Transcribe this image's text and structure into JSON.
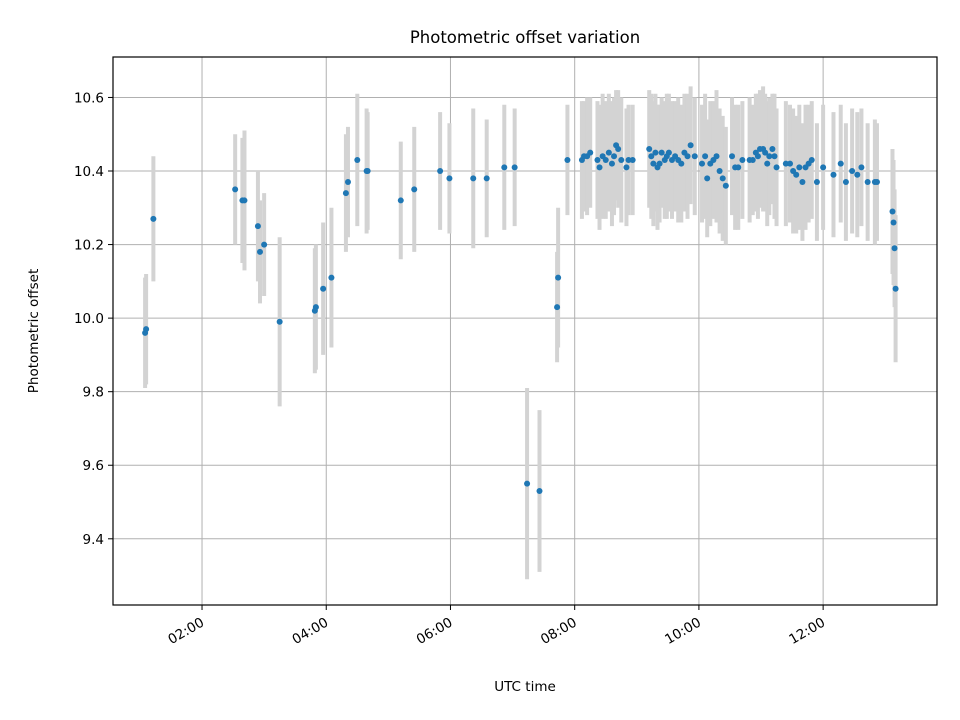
{
  "chart_data": {
    "type": "scatter",
    "title": "Photometric offset variation",
    "xlabel": "UTC time",
    "ylabel": "Photometric offset",
    "x_format": "HH:MM",
    "xlim": [
      "00:34",
      "13:50"
    ],
    "ylim": [
      9.22,
      10.71
    ],
    "xticks": [
      "02:00",
      "04:00",
      "06:00",
      "08:00",
      "10:00",
      "12:00"
    ],
    "yticks": [
      9.4,
      9.6,
      9.8,
      10.0,
      10.2,
      10.4,
      10.6
    ],
    "grid": true,
    "colors": {
      "points": "#1f77b4",
      "errorbars": "#d3d3d3",
      "grid": "#b0b0b0"
    },
    "points": [
      {
        "t": "01:05",
        "y": 9.96,
        "err": 0.15
      },
      {
        "t": "01:06",
        "y": 9.97,
        "err": 0.15
      },
      {
        "t": "01:13",
        "y": 10.27,
        "err": 0.17
      },
      {
        "t": "02:32",
        "y": 10.35,
        "err": 0.15
      },
      {
        "t": "02:39",
        "y": 10.32,
        "err": 0.17
      },
      {
        "t": "02:41",
        "y": 10.32,
        "err": 0.19
      },
      {
        "t": "02:54",
        "y": 10.25,
        "err": 0.15
      },
      {
        "t": "02:56",
        "y": 10.18,
        "err": 0.14
      },
      {
        "t": "03:00",
        "y": 10.2,
        "err": 0.14
      },
      {
        "t": "03:15",
        "y": 9.99,
        "err": 0.23
      },
      {
        "t": "03:49",
        "y": 10.02,
        "err": 0.17
      },
      {
        "t": "03:50",
        "y": 10.03,
        "err": 0.17
      },
      {
        "t": "03:57",
        "y": 10.08,
        "err": 0.18
      },
      {
        "t": "04:05",
        "y": 10.11,
        "err": 0.19
      },
      {
        "t": "04:19",
        "y": 10.34,
        "err": 0.16
      },
      {
        "t": "04:21",
        "y": 10.37,
        "err": 0.15
      },
      {
        "t": "04:30",
        "y": 10.43,
        "err": 0.18
      },
      {
        "t": "04:39",
        "y": 10.4,
        "err": 0.17
      },
      {
        "t": "04:40",
        "y": 10.4,
        "err": 0.16
      },
      {
        "t": "05:12",
        "y": 10.32,
        "err": 0.16
      },
      {
        "t": "05:25",
        "y": 10.35,
        "err": 0.17
      },
      {
        "t": "05:50",
        "y": 10.4,
        "err": 0.16
      },
      {
        "t": "05:59",
        "y": 10.38,
        "err": 0.15
      },
      {
        "t": "06:22",
        "y": 10.38,
        "err": 0.19
      },
      {
        "t": "06:35",
        "y": 10.38,
        "err": 0.16
      },
      {
        "t": "06:52",
        "y": 10.41,
        "err": 0.17
      },
      {
        "t": "07:02",
        "y": 10.41,
        "err": 0.16
      },
      {
        "t": "07:14",
        "y": 9.55,
        "err": 0.26
      },
      {
        "t": "07:26",
        "y": 9.53,
        "err": 0.22
      },
      {
        "t": "07:43",
        "y": 10.03,
        "err": 0.15
      },
      {
        "t": "07:44",
        "y": 10.11,
        "err": 0.19
      },
      {
        "t": "07:53",
        "y": 10.43,
        "err": 0.15
      },
      {
        "t": "08:07",
        "y": 10.43,
        "err": 0.16
      },
      {
        "t": "08:09",
        "y": 10.44,
        "err": 0.15
      },
      {
        "t": "08:12",
        "y": 10.44,
        "err": 0.16
      },
      {
        "t": "08:15",
        "y": 10.45,
        "err": 0.15
      },
      {
        "t": "08:22",
        "y": 10.43,
        "err": 0.16
      },
      {
        "t": "08:24",
        "y": 10.41,
        "err": 0.17
      },
      {
        "t": "08:27",
        "y": 10.44,
        "err": 0.17
      },
      {
        "t": "08:30",
        "y": 10.43,
        "err": 0.16
      },
      {
        "t": "08:33",
        "y": 10.45,
        "err": 0.16
      },
      {
        "t": "08:36",
        "y": 10.42,
        "err": 0.17
      },
      {
        "t": "08:38",
        "y": 10.44,
        "err": 0.16
      },
      {
        "t": "08:40",
        "y": 10.47,
        "err": 0.15
      },
      {
        "t": "08:42",
        "y": 10.46,
        "err": 0.16
      },
      {
        "t": "08:45",
        "y": 10.43,
        "err": 0.17
      },
      {
        "t": "08:50",
        "y": 10.41,
        "err": 0.16
      },
      {
        "t": "08:52",
        "y": 10.43,
        "err": 0.15
      },
      {
        "t": "08:56",
        "y": 10.43,
        "err": 0.15
      },
      {
        "t": "09:12",
        "y": 10.46,
        "err": 0.16
      },
      {
        "t": "09:14",
        "y": 10.44,
        "err": 0.17
      },
      {
        "t": "09:16",
        "y": 10.42,
        "err": 0.17
      },
      {
        "t": "09:18",
        "y": 10.45,
        "err": 0.16
      },
      {
        "t": "09:20",
        "y": 10.41,
        "err": 0.17
      },
      {
        "t": "09:22",
        "y": 10.42,
        "err": 0.16
      },
      {
        "t": "09:24",
        "y": 10.45,
        "err": 0.15
      },
      {
        "t": "09:27",
        "y": 10.43,
        "err": 0.16
      },
      {
        "t": "09:29",
        "y": 10.44,
        "err": 0.17
      },
      {
        "t": "09:31",
        "y": 10.45,
        "err": 0.16
      },
      {
        "t": "09:34",
        "y": 10.43,
        "err": 0.16
      },
      {
        "t": "09:37",
        "y": 10.44,
        "err": 0.15
      },
      {
        "t": "09:40",
        "y": 10.43,
        "err": 0.17
      },
      {
        "t": "09:43",
        "y": 10.42,
        "err": 0.16
      },
      {
        "t": "09:46",
        "y": 10.45,
        "err": 0.16
      },
      {
        "t": "09:49",
        "y": 10.44,
        "err": 0.17
      },
      {
        "t": "09:52",
        "y": 10.47,
        "err": 0.16
      },
      {
        "t": "09:56",
        "y": 10.44,
        "err": 0.16
      },
      {
        "t": "10:03",
        "y": 10.42,
        "err": 0.16
      },
      {
        "t": "10:06",
        "y": 10.44,
        "err": 0.17
      },
      {
        "t": "10:08",
        "y": 10.38,
        "err": 0.16
      },
      {
        "t": "10:11",
        "y": 10.42,
        "err": 0.17
      },
      {
        "t": "10:14",
        "y": 10.43,
        "err": 0.16
      },
      {
        "t": "10:17",
        "y": 10.44,
        "err": 0.18
      },
      {
        "t": "10:20",
        "y": 10.4,
        "err": 0.17
      },
      {
        "t": "10:23",
        "y": 10.38,
        "err": 0.17
      },
      {
        "t": "10:26",
        "y": 10.36,
        "err": 0.16
      },
      {
        "t": "10:32",
        "y": 10.44,
        "err": 0.16
      },
      {
        "t": "10:35",
        "y": 10.41,
        "err": 0.17
      },
      {
        "t": "10:38",
        "y": 10.41,
        "err": 0.17
      },
      {
        "t": "10:42",
        "y": 10.43,
        "err": 0.16
      },
      {
        "t": "10:49",
        "y": 10.43,
        "err": 0.17
      },
      {
        "t": "10:52",
        "y": 10.43,
        "err": 0.15
      },
      {
        "t": "10:55",
        "y": 10.45,
        "err": 0.16
      },
      {
        "t": "10:57",
        "y": 10.44,
        "err": 0.17
      },
      {
        "t": "10:59",
        "y": 10.46,
        "err": 0.16
      },
      {
        "t": "11:02",
        "y": 10.46,
        "err": 0.17
      },
      {
        "t": "11:04",
        "y": 10.45,
        "err": 0.16
      },
      {
        "t": "11:06",
        "y": 10.42,
        "err": 0.17
      },
      {
        "t": "11:08",
        "y": 10.44,
        "err": 0.16
      },
      {
        "t": "11:11",
        "y": 10.46,
        "err": 0.15
      },
      {
        "t": "11:13",
        "y": 10.44,
        "err": 0.17
      },
      {
        "t": "11:15",
        "y": 10.41,
        "err": 0.16
      },
      {
        "t": "11:24",
        "y": 10.42,
        "err": 0.17
      },
      {
        "t": "11:28",
        "y": 10.42,
        "err": 0.16
      },
      {
        "t": "11:31",
        "y": 10.4,
        "err": 0.17
      },
      {
        "t": "11:34",
        "y": 10.39,
        "err": 0.16
      },
      {
        "t": "11:37",
        "y": 10.41,
        "err": 0.17
      },
      {
        "t": "11:40",
        "y": 10.37,
        "err": 0.16
      },
      {
        "t": "11:43",
        "y": 10.41,
        "err": 0.17
      },
      {
        "t": "11:46",
        "y": 10.42,
        "err": 0.16
      },
      {
        "t": "11:49",
        "y": 10.43,
        "err": 0.16
      },
      {
        "t": "11:54",
        "y": 10.37,
        "err": 0.16
      },
      {
        "t": "12:00",
        "y": 10.41,
        "err": 0.17
      },
      {
        "t": "12:10",
        "y": 10.39,
        "err": 0.17
      },
      {
        "t": "12:17",
        "y": 10.42,
        "err": 0.16
      },
      {
        "t": "12:22",
        "y": 10.37,
        "err": 0.16
      },
      {
        "t": "12:28",
        "y": 10.4,
        "err": 0.17
      },
      {
        "t": "12:33",
        "y": 10.39,
        "err": 0.17
      },
      {
        "t": "12:37",
        "y": 10.41,
        "err": 0.16
      },
      {
        "t": "12:43",
        "y": 10.37,
        "err": 0.16
      },
      {
        "t": "12:50",
        "y": 10.37,
        "err": 0.17
      },
      {
        "t": "12:52",
        "y": 10.37,
        "err": 0.16
      },
      {
        "t": "13:07",
        "y": 10.29,
        "err": 0.17
      },
      {
        "t": "13:08",
        "y": 10.26,
        "err": 0.17
      },
      {
        "t": "13:09",
        "y": 10.19,
        "err": 0.16
      },
      {
        "t": "13:10",
        "y": 10.08,
        "err": 0.2
      }
    ]
  }
}
